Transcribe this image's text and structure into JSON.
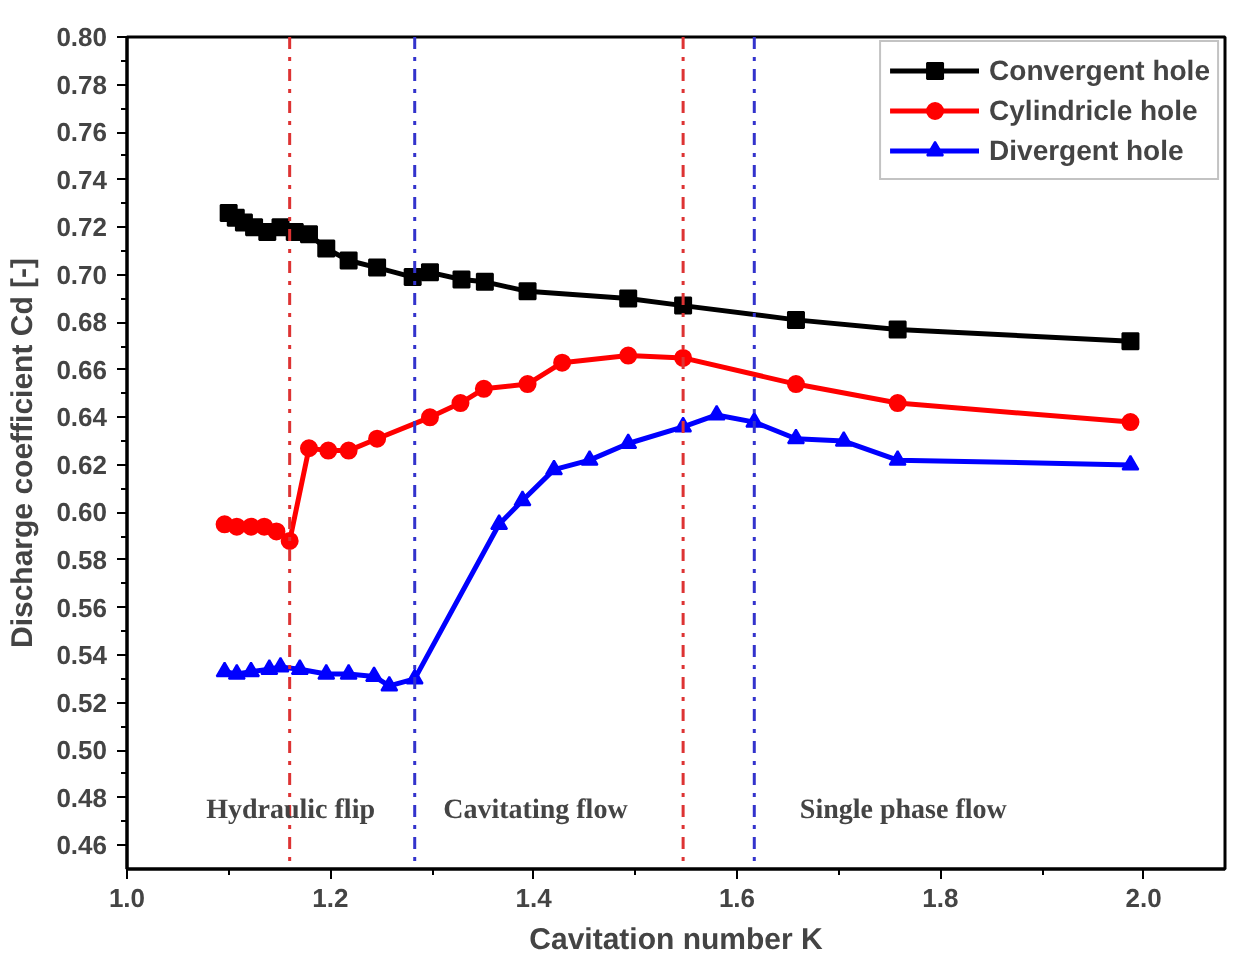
{
  "chart_data": {
    "type": "line",
    "xlabel": "Cavitation number K",
    "ylabel": "Discharge coefficient Cd [-]",
    "xlim": [
      1.0,
      2.08
    ],
    "ylim": [
      0.45,
      0.8
    ],
    "xticks": [
      {
        "value": 1.0,
        "label": "1.0"
      },
      {
        "value": 1.2,
        "label": "1.2"
      },
      {
        "value": 1.4,
        "label": "1.4"
      },
      {
        "value": 1.6,
        "label": "1.6"
      },
      {
        "value": 1.8,
        "label": "1.8"
      },
      {
        "value": 2.0,
        "label": "2.0"
      }
    ],
    "yticks": [
      {
        "value": 0.46,
        "label": "0.46"
      },
      {
        "value": 0.48,
        "label": "0.48"
      },
      {
        "value": 0.5,
        "label": "0.50"
      },
      {
        "value": 0.52,
        "label": "0.52"
      },
      {
        "value": 0.54,
        "label": "0.54"
      },
      {
        "value": 0.56,
        "label": "0.56"
      },
      {
        "value": 0.58,
        "label": "0.58"
      },
      {
        "value": 0.6,
        "label": "0.60"
      },
      {
        "value": 0.62,
        "label": "0.62"
      },
      {
        "value": 0.64,
        "label": "0.64"
      },
      {
        "value": 0.66,
        "label": "0.66"
      },
      {
        "value": 0.68,
        "label": "0.68"
      },
      {
        "value": 0.7,
        "label": "0.70"
      },
      {
        "value": 0.72,
        "label": "0.72"
      },
      {
        "value": 0.74,
        "label": "0.74"
      },
      {
        "value": 0.76,
        "label": "0.76"
      },
      {
        "value": 0.78,
        "label": "0.78"
      },
      {
        "value": 0.8,
        "label": "0.80"
      }
    ],
    "grid": false,
    "legend": "top right",
    "line_style": "solid",
    "series": [
      {
        "name": "Convergent hole",
        "color": "#000000",
        "marker": "square",
        "x": [
          1.1,
          1.107,
          1.115,
          1.125,
          1.138,
          1.151,
          1.165,
          1.179,
          1.196,
          1.218,
          1.246,
          1.281,
          1.298,
          1.329,
          1.352,
          1.394,
          1.493,
          1.547,
          1.658,
          1.758,
          1.987
        ],
        "values": [
          0.726,
          0.724,
          0.722,
          0.72,
          0.718,
          0.72,
          0.718,
          0.717,
          0.711,
          0.706,
          0.703,
          0.699,
          0.701,
          0.698,
          0.697,
          0.693,
          0.69,
          0.687,
          0.681,
          0.677,
          0.672
        ]
      },
      {
        "name": "Cylindricle hole",
        "color": "#ff0000",
        "marker": "circle",
        "x": [
          1.096,
          1.108,
          1.122,
          1.135,
          1.147,
          1.16,
          1.179,
          1.198,
          1.218,
          1.246,
          1.298,
          1.328,
          1.351,
          1.394,
          1.428,
          1.493,
          1.547,
          1.658,
          1.758,
          1.987
        ],
        "values": [
          0.595,
          0.594,
          0.594,
          0.594,
          0.592,
          0.588,
          0.627,
          0.626,
          0.626,
          0.631,
          0.64,
          0.646,
          0.652,
          0.654,
          0.663,
          0.666,
          0.665,
          0.654,
          0.646,
          0.638
        ]
      },
      {
        "name": "Divergent hole",
        "color": "#0000ff",
        "marker": "triangle",
        "x": [
          1.096,
          1.108,
          1.122,
          1.14,
          1.151,
          1.17,
          1.196,
          1.218,
          1.243,
          1.258,
          1.283,
          1.366,
          1.389,
          1.42,
          1.455,
          1.493,
          1.547,
          1.58,
          1.617,
          1.658,
          1.705,
          1.758,
          1.987
        ],
        "values": [
          0.533,
          0.532,
          0.533,
          0.534,
          0.535,
          0.534,
          0.532,
          0.532,
          0.531,
          0.527,
          0.53,
          0.595,
          0.605,
          0.618,
          0.622,
          0.629,
          0.636,
          0.641,
          0.638,
          0.631,
          0.63,
          0.622,
          0.62
        ]
      }
    ],
    "ref_lines": [
      {
        "axis": "x",
        "value": 1.16,
        "color": "#dd3333",
        "line_style": "dashdot"
      },
      {
        "axis": "x",
        "value": 1.283,
        "color": "#3333cc",
        "line_style": "dashdot"
      },
      {
        "axis": "x",
        "value": 1.547,
        "color": "#dd3333",
        "line_style": "dashdot"
      },
      {
        "axis": "x",
        "value": 1.617,
        "color": "#3333cc",
        "line_style": "dashdot"
      }
    ],
    "annotations": [
      "Hydraulic flip",
      "Cavitating flow",
      "Single phase flow"
    ]
  }
}
